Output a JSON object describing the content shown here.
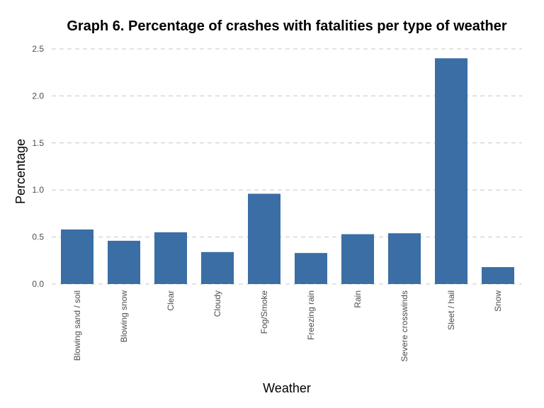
{
  "chart_data": {
    "type": "bar",
    "title": "Graph 6. Percentage of crashes with fatalities per type of weather",
    "xlabel": "Weather",
    "ylabel": "Percentage",
    "categories": [
      "Blowing sand / soil",
      "Blowing snow",
      "Clear",
      "Cloudy",
      "Fog/Smoke",
      "Freezing rain",
      "Rain",
      "Severe crosswinds",
      "Sleet / hail",
      "Snow"
    ],
    "values": [
      0.58,
      0.46,
      0.55,
      0.34,
      0.96,
      0.33,
      0.53,
      0.54,
      2.4,
      0.18
    ],
    "ylim": [
      0,
      2.5
    ],
    "yticks": [
      "0.0",
      "0.5",
      "1.0",
      "1.5",
      "2.0",
      "2.5"
    ],
    "grid": true,
    "bar_color": "#3a6ea5"
  }
}
